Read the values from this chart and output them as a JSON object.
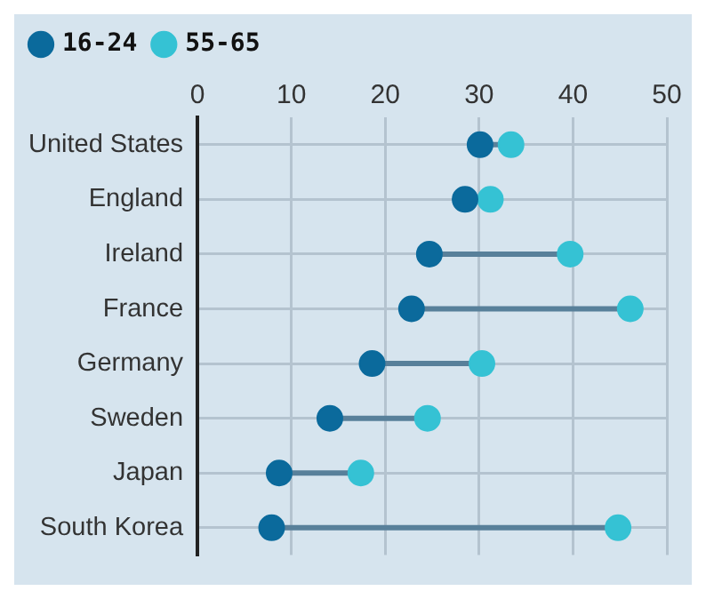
{
  "chart_data": {
    "type": "scatter",
    "orientation": "horizontal",
    "categories": [
      "United States",
      "England",
      "Ireland",
      "France",
      "Germany",
      "Sweden",
      "Japan",
      "South Korea"
    ],
    "series": [
      {
        "name": "16-24",
        "color": "#0b6a9c",
        "values": [
          30.1,
          28.5,
          24.7,
          22.8,
          18.6,
          14.1,
          8.7,
          7.9
        ]
      },
      {
        "name": "55-65",
        "color": "#35c2d4",
        "values": [
          33.4,
          31.2,
          39.7,
          46.1,
          30.3,
          24.5,
          17.4,
          44.8
        ]
      }
    ],
    "xlim": [
      0,
      50
    ],
    "xticks": [
      0,
      10,
      20,
      30,
      40,
      50
    ],
    "grid": true,
    "legend": "top left",
    "marker": "circle"
  }
}
